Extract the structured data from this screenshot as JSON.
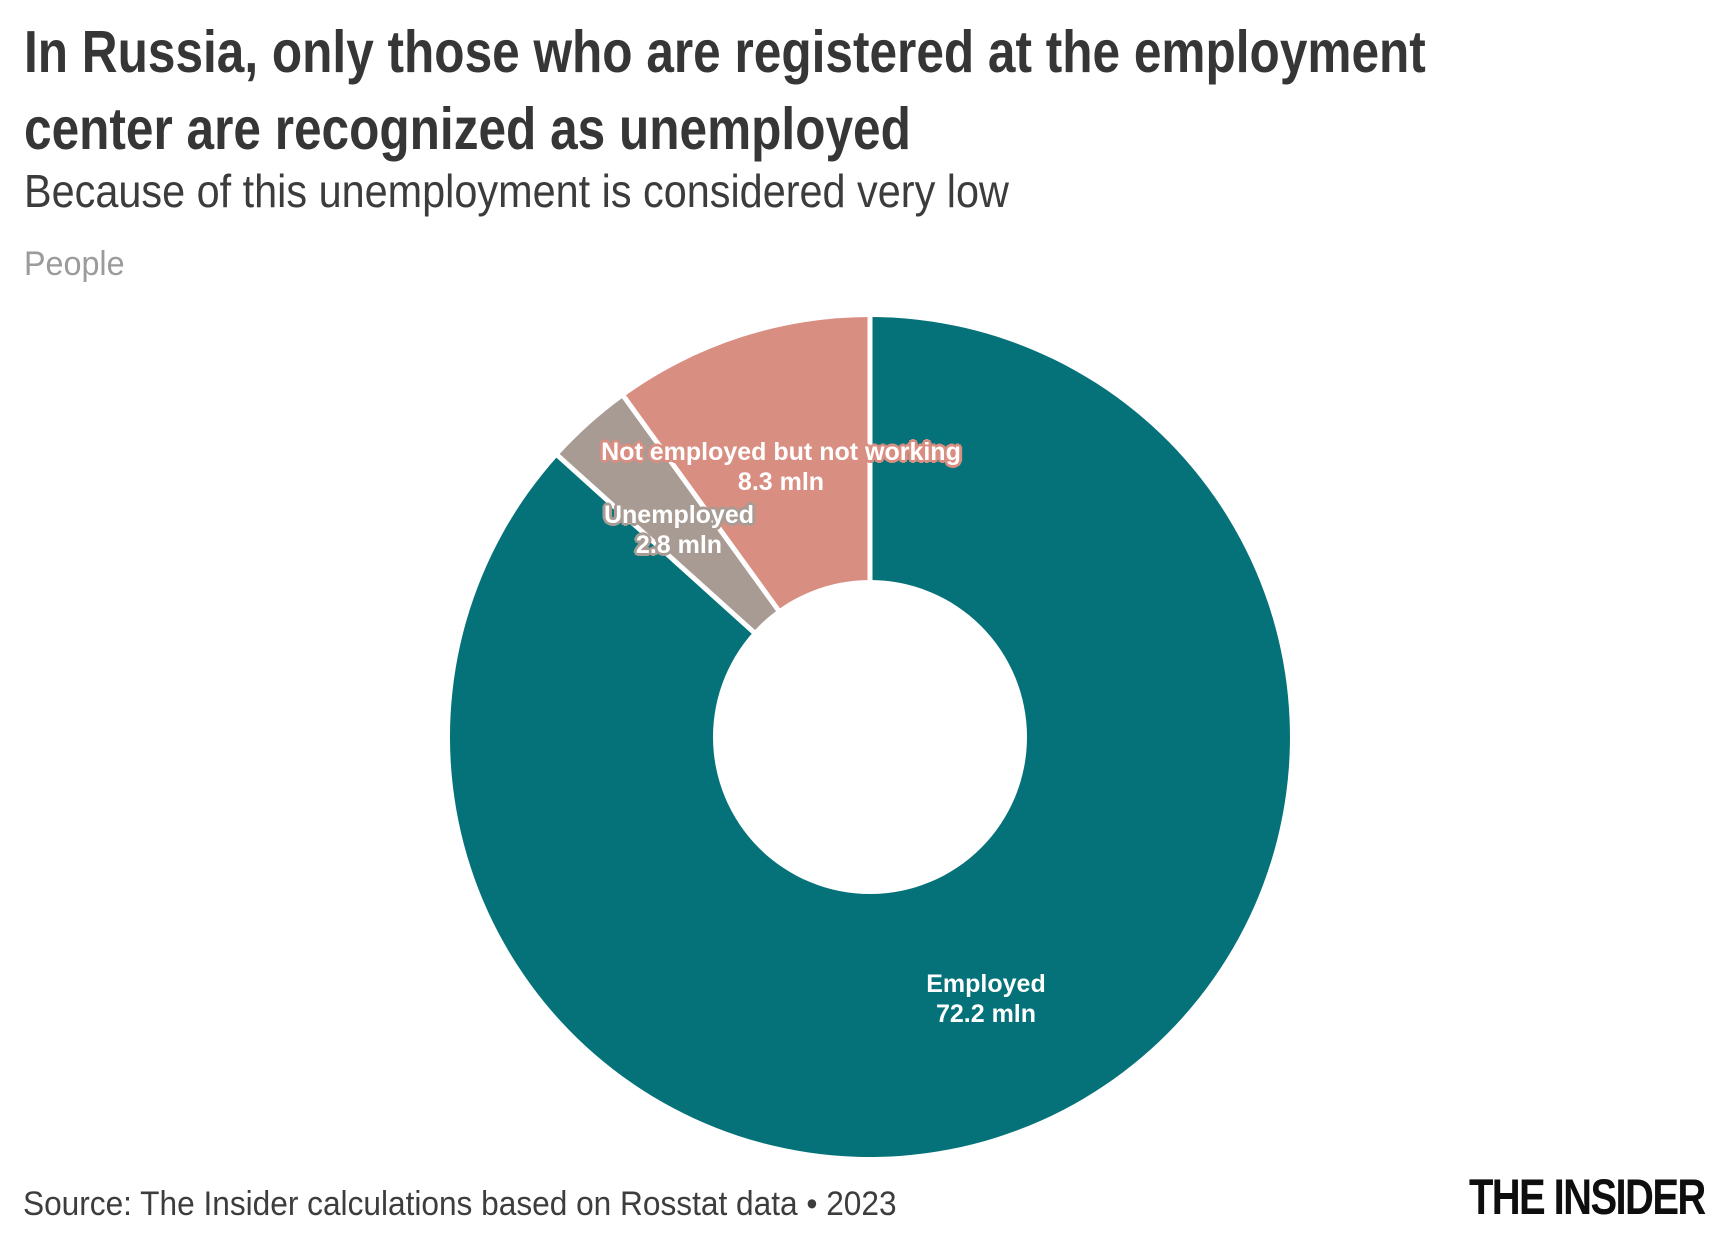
{
  "header": {
    "title_lines": [
      "In Russia, only those who are registered at the employment",
      "center are recognized as unemployed"
    ],
    "subtitle": "Because of this unemployment is considered very low",
    "unit_label": "People"
  },
  "footer": {
    "source": "Source: The Insider calculations based on Rosstat data • 2023",
    "brand": "THE INSIDER"
  },
  "colors": {
    "background": "#FFFFFF",
    "title_text": "#363636",
    "muted_text": "#9B9B9B",
    "employed_teal": "#05727A",
    "unemployed_gray": "#A89B94",
    "not_employed_salmon": "#D98E82",
    "slice_gap": "#FFFFFF",
    "label_text": "#FFFFFF"
  },
  "chart_data": {
    "type": "pie",
    "subtype": "donut",
    "title": "People",
    "value_unit": "mln",
    "start_angle_deg": -90,
    "direction": "clockwise",
    "inner_radius_ratio": 0.374,
    "legend_position": "none",
    "slices": [
      {
        "label": "Employed",
        "value": 72.2,
        "value_label": "72.2 mln",
        "color": "#05727A"
      },
      {
        "label": "Unemployed",
        "value": 2.8,
        "value_label": "2.8 mln",
        "color": "#A89B94"
      },
      {
        "label": "Not employed but not working",
        "value": 8.3,
        "value_label": "8.3 mln",
        "color": "#D98E82"
      }
    ]
  }
}
